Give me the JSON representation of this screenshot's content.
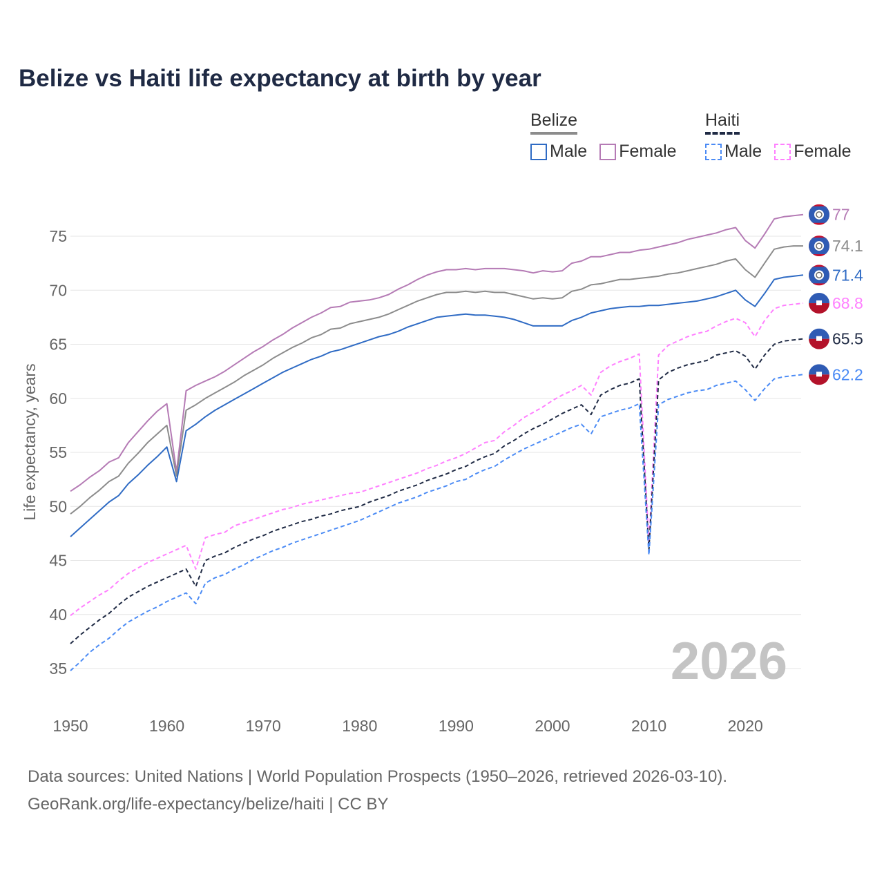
{
  "chart_data": {
    "type": "line",
    "title": "Belize vs Haiti life expectancy at birth by year",
    "xlabel": "",
    "ylabel": "Life expectancy, years",
    "xlim": [
      1950,
      2026
    ],
    "ylim": [
      32,
      79
    ],
    "x_ticks": [
      "1950",
      "1960",
      "1970",
      "1980",
      "1990",
      "2000",
      "2010",
      "2020"
    ],
    "y_ticks": [
      "35",
      "40",
      "45",
      "50",
      "55",
      "60",
      "65",
      "70",
      "75"
    ],
    "grid": "horizontal",
    "legend": "top-right",
    "year_watermark": "2026",
    "legend_groups": [
      {
        "name": "Belize",
        "color": "#8c8c8c",
        "dashed": false,
        "items": [
          "Male",
          "Female"
        ]
      },
      {
        "name": "Haiti",
        "color": "#1f2a44",
        "dashed": true,
        "items": [
          "Male",
          "Female"
        ]
      }
    ],
    "start_year": 1950,
    "series": [
      {
        "name": "Belize Female",
        "color": "#b57bb5",
        "dashed": false,
        "flag": "belize",
        "end_label": "77",
        "values": [
          51.4,
          52.0,
          52.7,
          53.3,
          54.1,
          54.5,
          55.9,
          56.9,
          57.9,
          58.8,
          59.5,
          53.2,
          60.7,
          61.2,
          61.6,
          62.0,
          62.5,
          63.1,
          63.7,
          64.3,
          64.8,
          65.4,
          65.9,
          66.5,
          67.0,
          67.5,
          67.9,
          68.4,
          68.5,
          68.9,
          69.0,
          69.1,
          69.3,
          69.6,
          70.1,
          70.5,
          71.0,
          71.4,
          71.7,
          71.9,
          71.9,
          72.0,
          71.9,
          72.0,
          72.0,
          72.0,
          71.9,
          71.8,
          71.6,
          71.8,
          71.7,
          71.8,
          72.5,
          72.7,
          73.1,
          73.1,
          73.3,
          73.5,
          73.5,
          73.7,
          73.8,
          74.0,
          74.2,
          74.4,
          74.7,
          74.9,
          75.1,
          75.3,
          75.6,
          75.8,
          74.6,
          73.9,
          75.2,
          76.6,
          76.8,
          76.9,
          77.0
        ]
      },
      {
        "name": "Belize",
        "color": "#8c8c8c",
        "dashed": false,
        "flag": "belize",
        "end_label": "74.1",
        "values": [
          49.3,
          50.0,
          50.8,
          51.5,
          52.3,
          52.8,
          54.0,
          54.9,
          55.9,
          56.7,
          57.5,
          52.8,
          58.9,
          59.4,
          60.0,
          60.5,
          61.0,
          61.5,
          62.1,
          62.6,
          63.1,
          63.7,
          64.2,
          64.7,
          65.1,
          65.6,
          65.9,
          66.4,
          66.5,
          66.9,
          67.1,
          67.3,
          67.5,
          67.8,
          68.2,
          68.6,
          69.0,
          69.3,
          69.6,
          69.8,
          69.8,
          69.9,
          69.8,
          69.9,
          69.8,
          69.8,
          69.6,
          69.4,
          69.2,
          69.3,
          69.2,
          69.3,
          69.9,
          70.1,
          70.5,
          70.6,
          70.8,
          71.0,
          71.0,
          71.1,
          71.2,
          71.3,
          71.5,
          71.6,
          71.8,
          72.0,
          72.2,
          72.4,
          72.7,
          72.9,
          71.9,
          71.2,
          72.5,
          73.8,
          74.0,
          74.1,
          74.1
        ]
      },
      {
        "name": "Belize Male",
        "color": "#2f6bc4",
        "dashed": false,
        "flag": "belize",
        "end_label": "71.4",
        "values": [
          47.2,
          48.0,
          48.8,
          49.6,
          50.4,
          51.0,
          52.1,
          52.9,
          53.8,
          54.6,
          55.5,
          52.3,
          57.0,
          57.6,
          58.3,
          58.9,
          59.4,
          59.9,
          60.4,
          60.9,
          61.4,
          61.9,
          62.4,
          62.8,
          63.2,
          63.6,
          63.9,
          64.3,
          64.5,
          64.8,
          65.1,
          65.4,
          65.7,
          65.9,
          66.2,
          66.6,
          66.9,
          67.2,
          67.5,
          67.6,
          67.7,
          67.8,
          67.7,
          67.7,
          67.6,
          67.5,
          67.3,
          67.0,
          66.7,
          66.7,
          66.7,
          66.7,
          67.2,
          67.5,
          67.9,
          68.1,
          68.3,
          68.4,
          68.5,
          68.5,
          68.6,
          68.6,
          68.7,
          68.8,
          68.9,
          69.0,
          69.2,
          69.4,
          69.7,
          70.0,
          69.1,
          68.5,
          69.7,
          71.0,
          71.2,
          71.3,
          71.4
        ]
      },
      {
        "name": "Haiti Female",
        "color": "#ff80ff",
        "dashed": true,
        "flag": "haiti",
        "end_label": "68.8",
        "values": [
          39.9,
          40.6,
          41.2,
          41.8,
          42.3,
          43.1,
          43.8,
          44.3,
          44.8,
          45.2,
          45.6,
          46.0,
          46.4,
          44.2,
          47.1,
          47.4,
          47.6,
          48.2,
          48.5,
          48.8,
          49.1,
          49.4,
          49.7,
          49.9,
          50.2,
          50.4,
          50.6,
          50.8,
          51.0,
          51.2,
          51.3,
          51.6,
          51.9,
          52.2,
          52.5,
          52.8,
          53.1,
          53.5,
          53.8,
          54.2,
          54.5,
          54.9,
          55.4,
          55.9,
          56.1,
          56.9,
          57.5,
          58.2,
          58.7,
          59.2,
          59.8,
          60.3,
          60.7,
          61.2,
          60.3,
          62.4,
          63.0,
          63.4,
          63.7,
          64.1,
          46.5,
          64.0,
          64.9,
          65.3,
          65.7,
          66.0,
          66.2,
          66.7,
          67.1,
          67.4,
          67.0,
          65.7,
          67.2,
          68.3,
          68.6,
          68.7,
          68.8
        ]
      },
      {
        "name": "Haiti",
        "color": "#1f2a44",
        "dashed": true,
        "flag": "haiti",
        "end_label": "65.5",
        "values": [
          37.3,
          38.1,
          38.8,
          39.5,
          40.1,
          40.9,
          41.6,
          42.1,
          42.6,
          43.0,
          43.4,
          43.8,
          44.2,
          42.6,
          45.0,
          45.4,
          45.7,
          46.2,
          46.6,
          47.0,
          47.3,
          47.7,
          48.0,
          48.3,
          48.6,
          48.8,
          49.1,
          49.3,
          49.6,
          49.8,
          50.0,
          50.4,
          50.7,
          51.0,
          51.4,
          51.7,
          52.0,
          52.4,
          52.7,
          53.0,
          53.4,
          53.7,
          54.2,
          54.6,
          54.9,
          55.6,
          56.1,
          56.7,
          57.2,
          57.6,
          58.1,
          58.6,
          59.0,
          59.4,
          58.5,
          60.3,
          60.8,
          61.2,
          61.4,
          61.8,
          46.0,
          61.7,
          62.4,
          62.8,
          63.1,
          63.3,
          63.5,
          64.0,
          64.2,
          64.4,
          63.9,
          62.7,
          64.0,
          65.0,
          65.3,
          65.4,
          65.5
        ]
      },
      {
        "name": "Haiti Male",
        "color": "#4b8bf5",
        "dashed": true,
        "flag": "haiti",
        "end_label": "62.2",
        "values": [
          34.8,
          35.6,
          36.5,
          37.2,
          37.8,
          38.6,
          39.3,
          39.8,
          40.3,
          40.7,
          41.2,
          41.6,
          42.0,
          41.0,
          42.9,
          43.4,
          43.7,
          44.2,
          44.6,
          45.1,
          45.5,
          45.9,
          46.2,
          46.6,
          46.9,
          47.2,
          47.5,
          47.8,
          48.1,
          48.4,
          48.7,
          49.1,
          49.5,
          49.9,
          50.3,
          50.6,
          50.9,
          51.3,
          51.6,
          51.9,
          52.3,
          52.5,
          53.0,
          53.4,
          53.7,
          54.3,
          54.8,
          55.3,
          55.7,
          56.1,
          56.5,
          56.9,
          57.3,
          57.6,
          56.7,
          58.3,
          58.6,
          58.9,
          59.1,
          59.5,
          45.5,
          59.4,
          59.9,
          60.2,
          60.5,
          60.7,
          60.8,
          61.2,
          61.4,
          61.6,
          60.8,
          59.8,
          60.9,
          61.8,
          62.0,
          62.1,
          62.2
        ]
      }
    ]
  },
  "source": {
    "line1": "Data sources: United Nations | World Population Prospects (1950–2026, retrieved 2026-03-10).",
    "line2": "GeoRank.org/life-expectancy/belize/haiti | CC BY"
  }
}
